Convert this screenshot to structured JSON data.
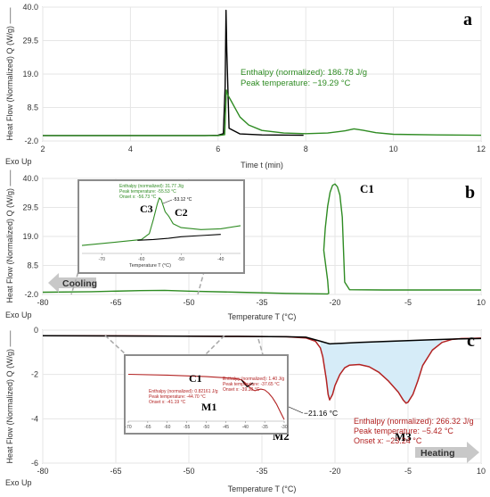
{
  "chart_data": [
    {
      "panel": "a",
      "type": "line",
      "ylabel": "Heat Flow (Normalized)  Q (W/g) ——",
      "xlabel": "Time  t  (min)",
      "corner_label": "Exo Up",
      "xlim": [
        2,
        12
      ],
      "ylim": [
        -2.0,
        40.0
      ],
      "xticks": [
        "2",
        "4",
        "6",
        "8",
        "10",
        "12"
      ],
      "yticks": [
        "-2.0",
        "8.5",
        "19.0",
        "29.5",
        "40.0"
      ],
      "series": [
        {
          "color": "#000000",
          "x": [
            2,
            5.7,
            6.0,
            6.12,
            6.16,
            6.18,
            6.2,
            6.25,
            6.5,
            7.0,
            7.95
          ],
          "y": [
            -0.3,
            -0.3,
            -0.2,
            0.3,
            15.0,
            39.0,
            26.0,
            2.0,
            0.2,
            -0.1,
            -0.2
          ]
        },
        {
          "color": "#2e8b22",
          "x": [
            2,
            6.0,
            6.15,
            6.19,
            6.22,
            6.3,
            6.4,
            6.5,
            6.7,
            7.0,
            7.5,
            8.0,
            8.5,
            8.9,
            9.1,
            9.3,
            9.6,
            10.0,
            11.0,
            12.0
          ],
          "y": [
            -0.3,
            -0.3,
            0.0,
            14.0,
            12.5,
            10.5,
            8.0,
            5.5,
            3.0,
            1.3,
            0.5,
            0.3,
            0.5,
            1.2,
            1.8,
            1.4,
            0.6,
            0.1,
            -0.1,
            -0.2
          ]
        }
      ],
      "annotations": [
        "Enthalpy (normalized): 186.78 J/g",
        "Peak temperature: −19.29 °C"
      ],
      "annotation_color": "#2e8b22"
    },
    {
      "panel": "b",
      "type": "line",
      "ylabel": "Heat Flow (Normalized)  Q (W/g) ——",
      "xlabel": "Temperature  T  (°C)",
      "corner_label": "Exo Up",
      "xlim": [
        -80,
        10
      ],
      "ylim": [
        -2.0,
        40.0
      ],
      "xticks": [
        "-80",
        "-65",
        "-50",
        "-35",
        "-20",
        "-5",
        "10"
      ],
      "yticks": [
        "-2.0",
        "8.5",
        "19.0",
        "29.5",
        "40.0"
      ],
      "series": [
        {
          "color": "#2e8b22",
          "x": [
            10,
            0,
            -10,
            -17,
            -18,
            -18.2,
            -18.5,
            -19,
            -19.5,
            -20,
            -20.5,
            -21,
            -21.5,
            -22,
            -22.3,
            -21.5,
            -21.3,
            -21.5,
            -30,
            -40,
            -50,
            -55,
            -60,
            -70,
            -80
          ],
          "y": [
            -0.4,
            -0.4,
            -0.4,
            -0.3,
            2.5,
            12.0,
            26.0,
            34.0,
            37.0,
            38.0,
            37.5,
            35.0,
            30.0,
            22.0,
            14.0,
            3.0,
            -1.6,
            -1.8,
            -1.6,
            -1.2,
            -0.8,
            -0.5,
            -0.6,
            -1.0,
            -1.2
          ]
        }
      ],
      "peak_labels": [
        "C1",
        "C2",
        "C3"
      ],
      "direction_label": "Cooling",
      "inset": {
        "xlim": [
          -75,
          -35
        ],
        "ylim": [
          16,
          34
        ],
        "xticks": [
          "-70",
          "-60",
          "-50",
          "-40"
        ],
        "xlabel": "Temperature  T  (°C)",
        "annotations": [
          "Enthalpy (normalized): 31.77 J/g",
          "Peak temperature: -55.53 °C",
          "Onset x: -56.73 °C"
        ],
        "callout": "-53.12 °C",
        "series": [
          {
            "color": "#2e8b22",
            "x": [
              -75,
              -65,
              -60,
              -58,
              -57,
              -56,
              -55.5,
              -55,
              -54,
              -53.2,
              -53,
              -52,
              -50,
              -45,
              -40,
              -35
            ],
            "y": [
              18.0,
              19.0,
              19.5,
              21.0,
              24.5,
              28.5,
              30.0,
              29.5,
              26.5,
              25.5,
              25.2,
              23.5,
              22.5,
              22.0,
              22.2,
              23.0
            ]
          },
          {
            "color": "#000000",
            "x": [
              -61,
              -57,
              -53.2,
              -50,
              -45,
              -40
            ],
            "y": [
              19.3,
              19.5,
              19.8,
              20.2,
              20.5,
              20.8
            ]
          }
        ]
      }
    },
    {
      "panel": "c",
      "type": "line",
      "ylabel": "Heat Flow (Normalized)  Q (W/g) ——",
      "xlabel": "Temperature  T  (°C)",
      "corner_label": "Exo Up",
      "xlim": [
        -80,
        10
      ],
      "ylim": [
        -6,
        0
      ],
      "xticks": [
        "-80",
        "-65",
        "-50",
        "-35",
        "-20",
        "-5",
        "10"
      ],
      "yticks": [
        "-6",
        "-4",
        "-2",
        "0"
      ],
      "series": [
        {
          "color": "#b22222",
          "x": [
            -80,
            -60,
            -40,
            -30,
            -26,
            -24,
            -23,
            -22.5,
            -21.8,
            -21.4,
            -21.1,
            -20.5,
            -20,
            -19,
            -18,
            -17,
            -15,
            -13,
            -11,
            -9,
            -7,
            -6,
            -5.4,
            -5,
            -4,
            -3,
            -2,
            0,
            2,
            4,
            6,
            8,
            10
          ],
          "y": [
            -0.25,
            -0.26,
            -0.28,
            -0.3,
            -0.35,
            -0.5,
            -0.8,
            -1.2,
            -2.2,
            -2.9,
            -3.15,
            -2.9,
            -2.5,
            -2.0,
            -1.7,
            -1.58,
            -1.55,
            -1.65,
            -1.9,
            -2.3,
            -2.8,
            -3.15,
            -3.3,
            -3.25,
            -2.9,
            -2.3,
            -1.6,
            -0.9,
            -0.55,
            -0.42,
            -0.38,
            -0.37,
            -0.36
          ]
        },
        {
          "color": "#000000",
          "x": [
            -80,
            -40,
            -30,
            -26,
            -23,
            -21.1,
            -15,
            -5,
            0,
            5,
            10
          ],
          "y": [
            -0.25,
            -0.28,
            -0.3,
            -0.32,
            -0.5,
            -0.62,
            -0.55,
            -0.47,
            -0.43,
            -0.4,
            -0.38
          ]
        }
      ],
      "fill_color": "#d6ecf8",
      "callout": "−21.16 °C",
      "peak_labels": [
        "M2",
        "M3"
      ],
      "annotations": [
        "Enthalpy (normalized): 266.32 J/g",
        "Peak temperature: −5.42 °C",
        "Onset x: −23.24 °C"
      ],
      "annotation_color": "#b22222",
      "direction_label": "Heating",
      "inset": {
        "xlim": [
          -70,
          -30
        ],
        "ylim": [
          -3,
          1
        ],
        "xticks": [
          "-70",
          "-65",
          "-60",
          "-55",
          "-50",
          "-45",
          "-40",
          "-35",
          "-30"
        ],
        "peak_labels": [
          "C1",
          "M1"
        ],
        "annotations_top": [
          "Enthalpy (normalized): 1.40 J/g",
          "Peak temperature: -37.65 °C",
          "Onset x: -39.38 °C"
        ],
        "annotations_left": [
          "Enthalpy (normalized): 0.82161 J/g",
          "Peak temperature: -44.70 °C",
          "Onset x: -41.19 °C"
        ],
        "series": [
          {
            "color": "#b22222",
            "x": [
              -70,
              -60,
              -50,
              -45,
              -43,
              -41,
              -40,
              -39,
              -38,
              -37.5,
              -37,
              -36,
              -35,
              -34,
              -33,
              -32,
              -31,
              -30
            ],
            "y": [
              0.0,
              -0.05,
              -0.15,
              -0.22,
              -0.26,
              -0.35,
              -0.55,
              -0.8,
              -1.0,
              -1.05,
              -1.0,
              -0.95,
              -1.0,
              -1.2,
              -1.5,
              -1.9,
              -2.4,
              -2.9
            ]
          },
          {
            "color": "#000000",
            "x": [
              -41,
              -39.5,
              -38
            ],
            "y": [
              -0.35,
              -0.8,
              -0.55
            ]
          }
        ]
      }
    }
  ]
}
